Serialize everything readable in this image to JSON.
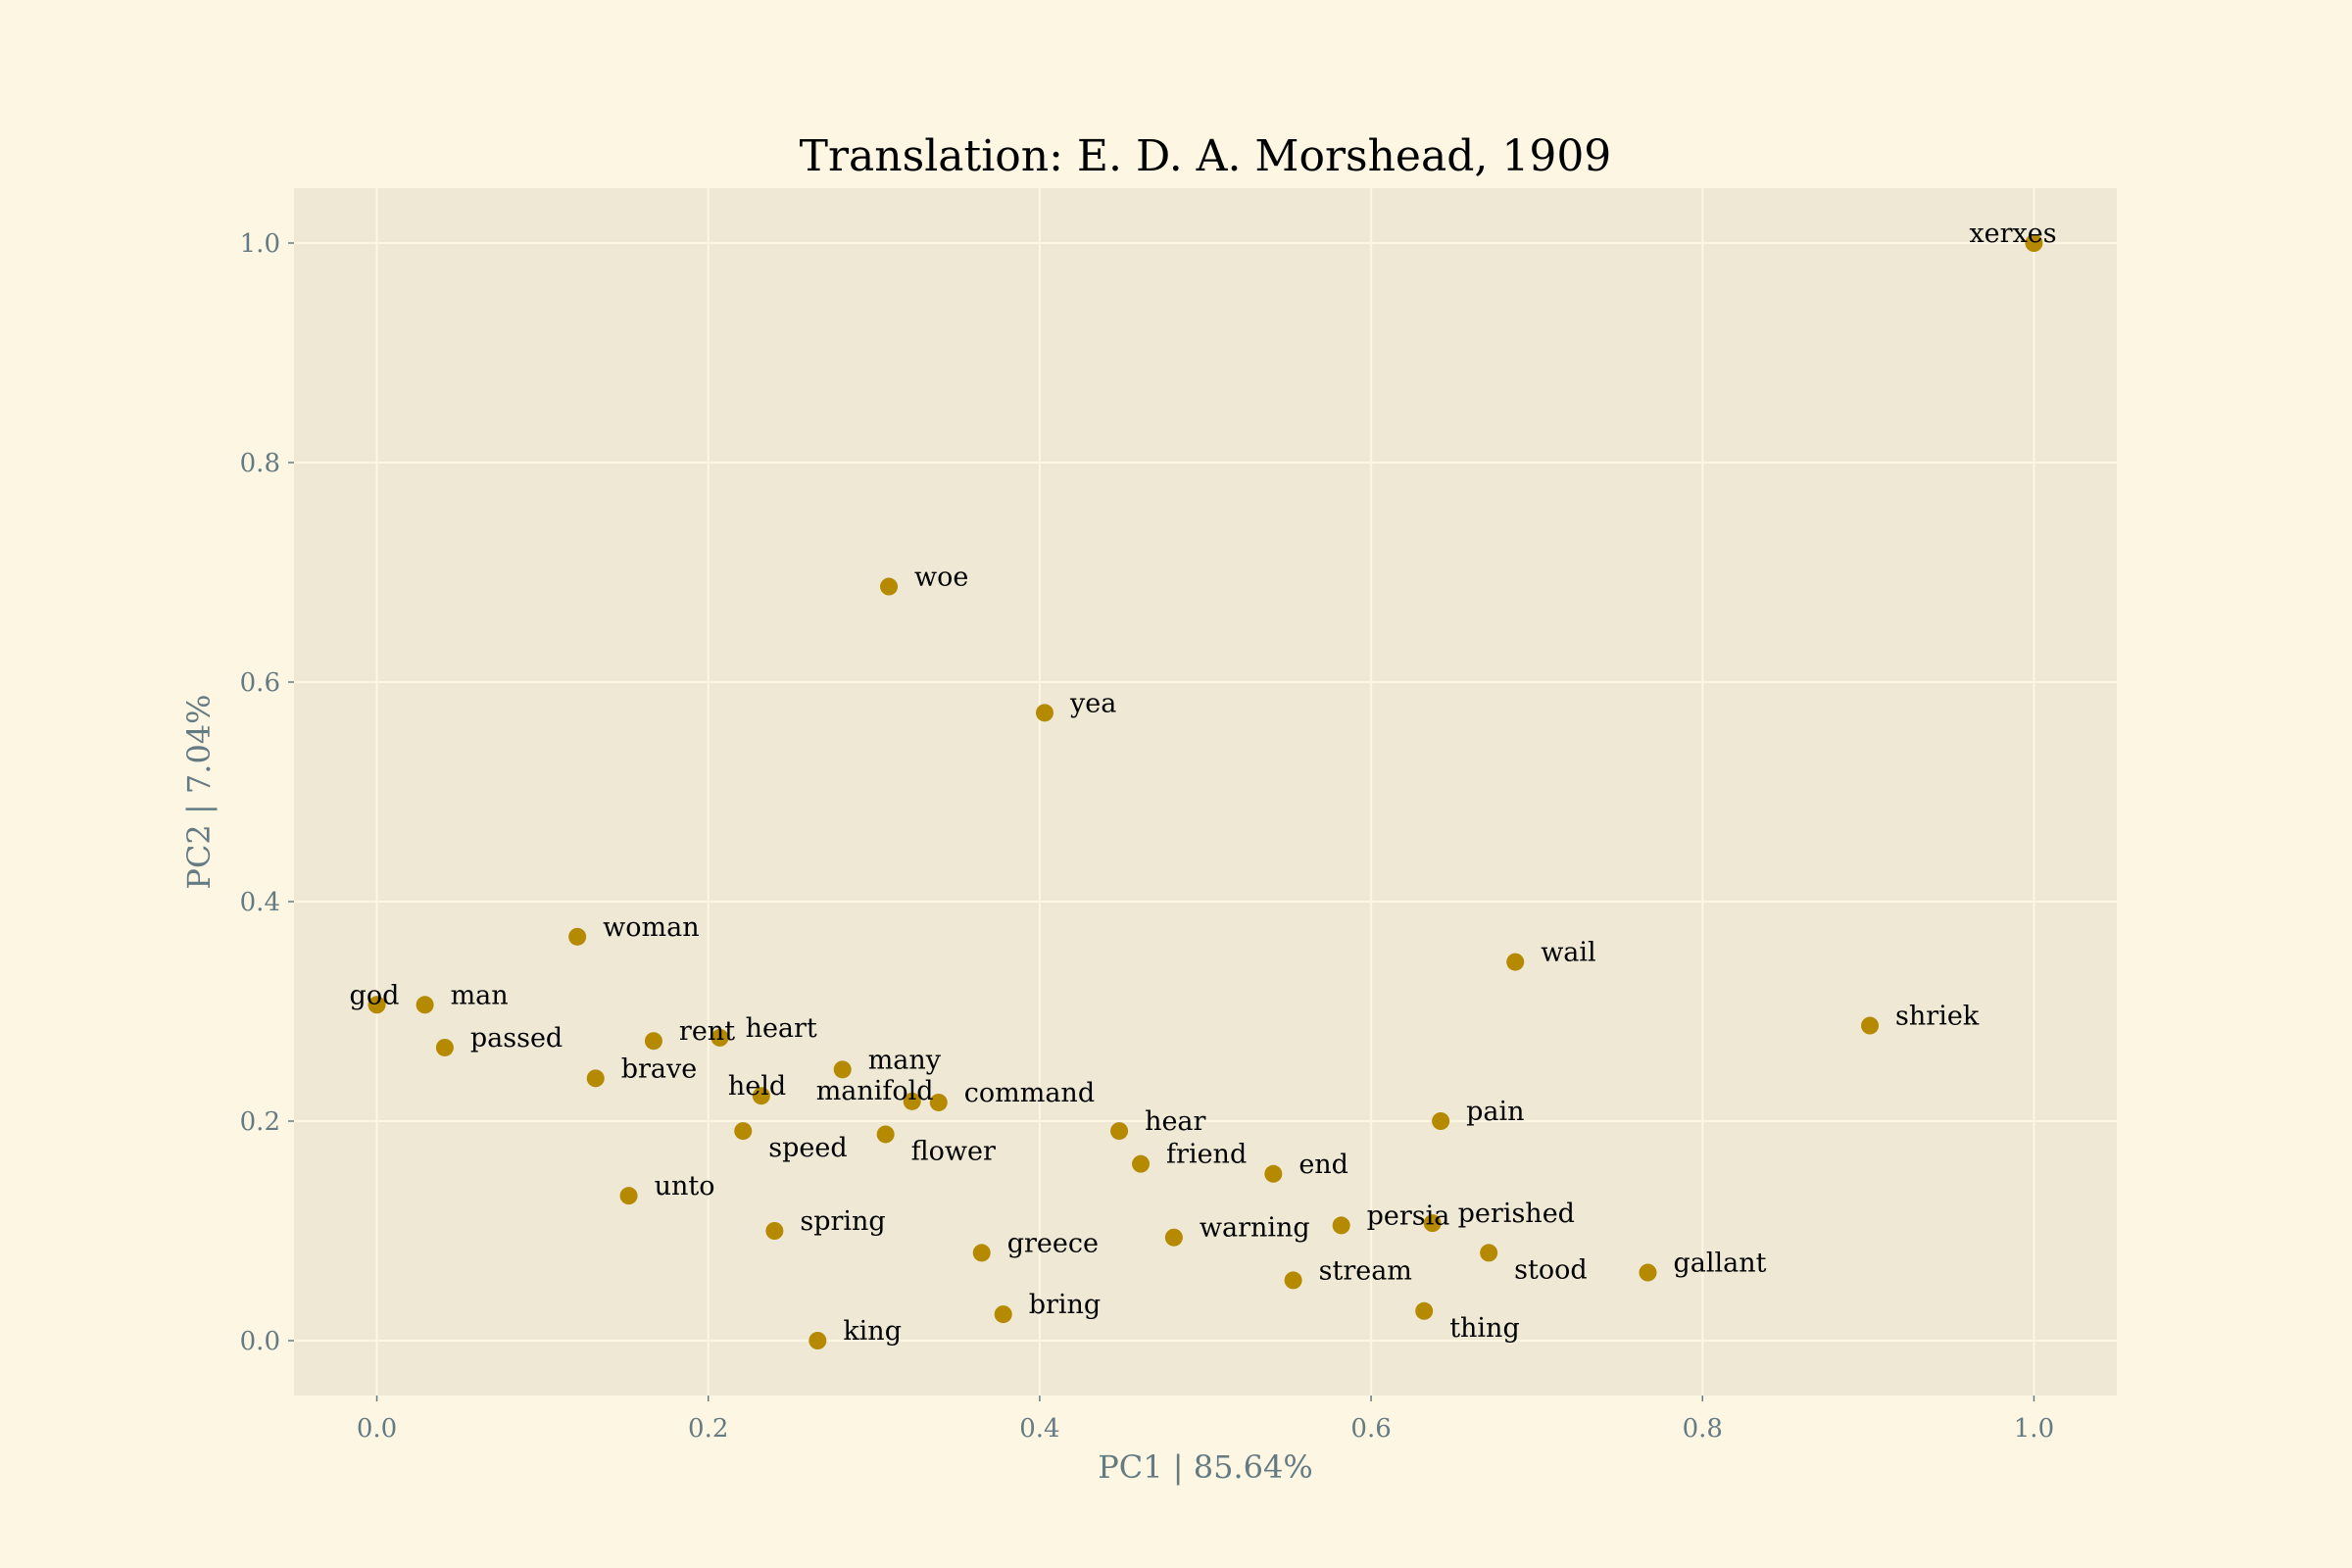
{
  "chart_data": {
    "type": "scatter",
    "title": "Translation: E. D. A. Morshead, 1909",
    "xlabel": "PC1 | 85.64%",
    "ylabel": "PC2 | 7.04%",
    "xlim": [
      -0.05,
      1.05
    ],
    "ylim": [
      -0.05,
      1.05
    ],
    "xticks": [
      0.0,
      0.2,
      0.4,
      0.6,
      0.8,
      1.0
    ],
    "xtick_labels": [
      "0.0",
      "0.2",
      "0.4",
      "0.6",
      "0.8",
      "1.0"
    ],
    "yticks": [
      0.0,
      0.2,
      0.4,
      0.6,
      0.8,
      1.0
    ],
    "ytick_labels": [
      "0.0",
      "0.2",
      "0.4",
      "0.6",
      "0.8",
      "1.0"
    ],
    "grid": true,
    "colors": {
      "figure_bg": "#fdf6e3",
      "plot_bg": "#eee8d5",
      "grid": "#fdf6e3",
      "marker": "#b58900",
      "axis_text": "#657b83",
      "title": "#000000",
      "point_label": "#000000"
    },
    "points": [
      {
        "word": "xerxes",
        "x": 1.0,
        "y": 1.0
      },
      {
        "word": "woe",
        "x": 0.309,
        "y": 0.687
      },
      {
        "word": "yea",
        "x": 0.403,
        "y": 0.572
      },
      {
        "word": "woman",
        "x": 0.121,
        "y": 0.368
      },
      {
        "word": "wail",
        "x": 0.687,
        "y": 0.345
      },
      {
        "word": "god",
        "x": 0.0,
        "y": 0.306
      },
      {
        "word": "man",
        "x": 0.029,
        "y": 0.306
      },
      {
        "word": "shriek",
        "x": 0.901,
        "y": 0.287
      },
      {
        "word": "passed",
        "x": 0.041,
        "y": 0.267
      },
      {
        "word": "rent",
        "x": 0.167,
        "y": 0.273
      },
      {
        "word": "heart",
        "x": 0.207,
        "y": 0.276
      },
      {
        "word": "many",
        "x": 0.281,
        "y": 0.247
      },
      {
        "word": "brave",
        "x": 0.132,
        "y": 0.239
      },
      {
        "word": "held",
        "x": 0.232,
        "y": 0.223
      },
      {
        "word": "manifold",
        "x": 0.323,
        "y": 0.218
      },
      {
        "word": "command",
        "x": 0.339,
        "y": 0.217
      },
      {
        "word": "pain",
        "x": 0.642,
        "y": 0.2
      },
      {
        "word": "hear",
        "x": 0.448,
        "y": 0.191
      },
      {
        "word": "speed",
        "x": 0.221,
        "y": 0.191
      },
      {
        "word": "flower",
        "x": 0.307,
        "y": 0.188
      },
      {
        "word": "friend",
        "x": 0.461,
        "y": 0.161
      },
      {
        "word": "end",
        "x": 0.541,
        "y": 0.152
      },
      {
        "word": "unto",
        "x": 0.152,
        "y": 0.132
      },
      {
        "word": "persia",
        "x": 0.582,
        "y": 0.105
      },
      {
        "word": "perished",
        "x": 0.637,
        "y": 0.107
      },
      {
        "word": "spring",
        "x": 0.24,
        "y": 0.1
      },
      {
        "word": "warning",
        "x": 0.481,
        "y": 0.094
      },
      {
        "word": "greece",
        "x": 0.365,
        "y": 0.08
      },
      {
        "word": "stood",
        "x": 0.671,
        "y": 0.08
      },
      {
        "word": "gallant",
        "x": 0.767,
        "y": 0.062
      },
      {
        "word": "stream",
        "x": 0.553,
        "y": 0.055
      },
      {
        "word": "thing",
        "x": 0.632,
        "y": 0.027
      },
      {
        "word": "bring",
        "x": 0.378,
        "y": 0.024
      },
      {
        "word": "king",
        "x": 0.266,
        "y": 0.0
      }
    ]
  }
}
